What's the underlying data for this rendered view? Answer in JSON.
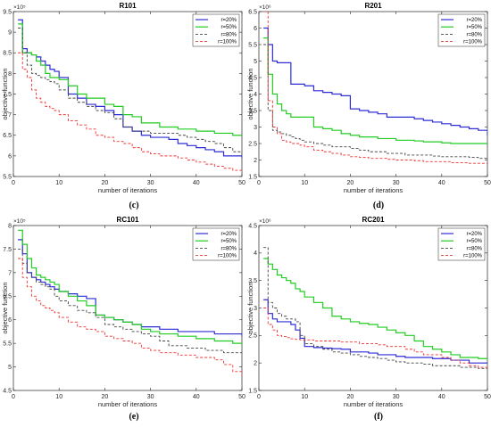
{
  "colors": {
    "r20": "#2d2dd6",
    "r50": "#22cc22",
    "r80": "#444444",
    "r100": "#ee3333",
    "axis": "#262626",
    "grid": "#000000"
  },
  "chart_data": [
    {
      "type": "line",
      "caption": "(c)",
      "title": "R101",
      "xlabel": "number of iterations",
      "ylabel": "objective function",
      "exponent": "×10⁵",
      "xlim": [
        0,
        50
      ],
      "ylim": [
        5.5,
        9.5
      ],
      "xticks": [
        "0",
        "10",
        "20",
        "30",
        "40",
        "50"
      ],
      "yticks": [
        "5.5",
        "6",
        "6.5",
        "7",
        "7.5",
        "8",
        "8.5",
        "9",
        "9.5"
      ],
      "legend_position": "top-right",
      "x": [
        1,
        2,
        3,
        4,
        5,
        6,
        7,
        8,
        9,
        10,
        12,
        14,
        16,
        18,
        20,
        22,
        24,
        26,
        28,
        30,
        32,
        34,
        36,
        38,
        40,
        42,
        44,
        46,
        48,
        50
      ],
      "series": [
        {
          "name": "r=20%",
          "values": [
            9.3,
            8.6,
            8.5,
            8.45,
            8.4,
            8.3,
            8.2,
            8.1,
            8.05,
            7.9,
            7.5,
            7.4,
            7.25,
            7.2,
            7.1,
            7.0,
            6.7,
            6.6,
            6.5,
            6.45,
            6.45,
            6.4,
            6.3,
            6.25,
            6.2,
            6.15,
            6.1,
            6.0,
            6.0,
            5.95
          ]
        },
        {
          "name": "r=50%",
          "values": [
            9.2,
            8.5,
            8.5,
            8.45,
            8.3,
            8.2,
            8.0,
            7.9,
            7.9,
            7.85,
            7.7,
            7.5,
            7.4,
            7.4,
            7.25,
            7.2,
            7.0,
            6.95,
            6.8,
            6.8,
            6.7,
            6.7,
            6.65,
            6.65,
            6.6,
            6.6,
            6.55,
            6.55,
            6.5,
            6.5
          ]
        },
        {
          "name": "r=80%",
          "values": [
            9.1,
            8.5,
            8.2,
            8.0,
            7.95,
            7.9,
            7.85,
            7.8,
            7.75,
            7.6,
            7.4,
            7.3,
            7.2,
            7.1,
            7.05,
            6.9,
            6.7,
            6.6,
            6.6,
            6.55,
            6.55,
            6.55,
            6.5,
            6.45,
            6.4,
            6.35,
            6.3,
            6.2,
            6.1,
            6.0
          ]
        },
        {
          "name": "r=100%",
          "values": [
            8.5,
            8.1,
            7.9,
            7.6,
            7.4,
            7.3,
            7.2,
            7.15,
            7.1,
            7.0,
            6.85,
            6.75,
            6.65,
            6.5,
            6.45,
            6.35,
            6.3,
            6.2,
            6.1,
            6.05,
            6.0,
            6.0,
            5.95,
            5.9,
            5.85,
            5.8,
            5.75,
            5.7,
            5.65,
            5.6
          ]
        }
      ]
    },
    {
      "type": "line",
      "caption": "(d)",
      "title": "R201",
      "xlabel": "number of iterations",
      "ylabel": "objective function",
      "exponent": "×10⁶",
      "xlim": [
        0,
        50
      ],
      "ylim": [
        1.5,
        6.5
      ],
      "xticks": [
        "0",
        "10",
        "20",
        "30",
        "40",
        "50"
      ],
      "yticks": [
        "1.5",
        "2",
        "2.5",
        "3",
        "3.5",
        "4",
        "4.5",
        "5",
        "5.5",
        "6",
        "6.5"
      ],
      "legend_position": "top-right",
      "x": [
        1,
        2,
        3,
        4,
        5,
        6,
        7,
        8,
        9,
        10,
        12,
        14,
        16,
        18,
        20,
        22,
        24,
        26,
        28,
        30,
        32,
        34,
        36,
        38,
        40,
        42,
        44,
        46,
        48,
        50
      ],
      "series": [
        {
          "name": "r=20%",
          "values": [
            6.0,
            5.5,
            5.0,
            4.95,
            4.95,
            4.95,
            4.3,
            4.3,
            4.3,
            4.25,
            4.1,
            4.05,
            4.0,
            3.95,
            3.55,
            3.5,
            3.45,
            3.4,
            3.3,
            3.3,
            3.3,
            3.25,
            3.2,
            3.15,
            3.1,
            3.05,
            3.0,
            2.95,
            2.9,
            2.75
          ]
        },
        {
          "name": "r=50%",
          "values": [
            5.7,
            4.6,
            4.0,
            3.7,
            3.5,
            3.4,
            3.3,
            3.3,
            3.3,
            3.3,
            3.0,
            2.95,
            2.9,
            2.8,
            2.75,
            2.7,
            2.7,
            2.65,
            2.65,
            2.6,
            2.6,
            2.58,
            2.55,
            2.55,
            2.52,
            2.5,
            2.5,
            2.5,
            2.5,
            2.5
          ]
        },
        {
          "name": "r=80%",
          "values": [
            5.5,
            3.5,
            2.9,
            2.85,
            2.8,
            2.75,
            2.7,
            2.65,
            2.6,
            2.55,
            2.5,
            2.45,
            2.4,
            2.4,
            2.35,
            2.3,
            2.25,
            2.25,
            2.2,
            2.2,
            2.15,
            2.15,
            2.15,
            2.12,
            2.1,
            2.1,
            2.1,
            2.08,
            2.05,
            2.05
          ]
        },
        {
          "name": "r=100%",
          "values": [
            6.5,
            3.8,
            3.0,
            2.8,
            2.6,
            2.55,
            2.5,
            2.5,
            2.45,
            2.4,
            2.3,
            2.25,
            2.2,
            2.15,
            2.1,
            2.08,
            2.05,
            2.05,
            2.02,
            2.0,
            2.0,
            1.98,
            1.95,
            1.95,
            1.95,
            1.92,
            1.92,
            1.9,
            1.9,
            1.9
          ]
        }
      ]
    },
    {
      "type": "line",
      "caption": "(e)",
      "title": "RC101",
      "xlabel": "number of iterations",
      "ylabel": "objective function",
      "exponent": "×10⁵",
      "xlim": [
        0,
        50
      ],
      "ylim": [
        4.5,
        8
      ],
      "xticks": [
        "0",
        "10",
        "20",
        "30",
        "40",
        "50"
      ],
      "yticks": [
        "4.5",
        "5",
        "5.5",
        "6",
        "6.5",
        "7",
        "7.5",
        "8"
      ],
      "legend_position": "top-right",
      "x": [
        1,
        2,
        3,
        4,
        5,
        6,
        7,
        8,
        9,
        10,
        12,
        14,
        16,
        18,
        20,
        22,
        24,
        26,
        28,
        30,
        32,
        34,
        36,
        38,
        40,
        42,
        44,
        46,
        48,
        50
      ],
      "series": [
        {
          "name": "r=20%",
          "values": [
            7.7,
            7.4,
            7.0,
            6.9,
            6.85,
            6.8,
            6.75,
            6.7,
            6.65,
            6.6,
            6.55,
            6.5,
            6.45,
            6.1,
            6.05,
            6.0,
            5.95,
            5.9,
            5.85,
            5.85,
            5.8,
            5.8,
            5.75,
            5.75,
            5.75,
            5.75,
            5.7,
            5.7,
            5.7,
            5.65
          ]
        },
        {
          "name": "r=50%",
          "values": [
            7.9,
            7.6,
            7.3,
            7.1,
            6.95,
            6.9,
            6.85,
            6.8,
            6.75,
            6.6,
            6.5,
            6.4,
            6.3,
            6.1,
            6.05,
            6.0,
            5.95,
            5.9,
            5.8,
            5.75,
            5.7,
            5.7,
            5.65,
            5.65,
            5.6,
            5.6,
            5.55,
            5.55,
            5.5,
            5.45
          ]
        },
        {
          "name": "r=80%",
          "values": [
            7.5,
            7.2,
            7.0,
            6.9,
            6.8,
            6.75,
            6.7,
            6.65,
            6.5,
            6.4,
            6.3,
            6.2,
            6.15,
            6.05,
            5.9,
            5.85,
            5.8,
            5.75,
            5.7,
            5.65,
            5.55,
            5.45,
            5.45,
            5.4,
            5.4,
            5.35,
            5.35,
            5.3,
            5.3,
            5.3
          ]
        },
        {
          "name": "r=100%",
          "values": [
            7.3,
            6.9,
            6.7,
            6.5,
            6.4,
            6.3,
            6.25,
            6.2,
            6.15,
            6.05,
            5.95,
            5.85,
            5.8,
            5.75,
            5.65,
            5.6,
            5.55,
            5.5,
            5.4,
            5.35,
            5.3,
            5.3,
            5.25,
            5.25,
            5.2,
            5.2,
            5.15,
            5.05,
            4.9,
            4.75
          ]
        }
      ]
    },
    {
      "type": "line",
      "caption": "(f)",
      "title": "RC201",
      "xlabel": "number of iterations",
      "ylabel": "objective function",
      "exponent": "×10⁶",
      "xlim": [
        0,
        50
      ],
      "ylim": [
        1.5,
        4.5
      ],
      "xticks": [
        "0",
        "10",
        "20",
        "30",
        "40",
        "50"
      ],
      "yticks": [
        "1.5",
        "2",
        "2.5",
        "3",
        "3.5",
        "4",
        "4.5"
      ],
      "legend_position": "top-right",
      "x": [
        1,
        2,
        3,
        4,
        5,
        6,
        7,
        8,
        9,
        10,
        12,
        14,
        16,
        18,
        20,
        22,
        24,
        26,
        28,
        30,
        32,
        34,
        36,
        38,
        40,
        42,
        44,
        46,
        48,
        50
      ],
      "series": [
        {
          "name": "r=20%",
          "values": [
            3.15,
            2.9,
            2.8,
            2.75,
            2.75,
            2.75,
            2.7,
            2.6,
            2.45,
            2.3,
            2.28,
            2.27,
            2.26,
            2.25,
            2.2,
            2.2,
            2.18,
            2.15,
            2.15,
            2.12,
            2.1,
            2.1,
            2.1,
            2.08,
            2.08,
            2.05,
            2.05,
            2.0,
            2.0,
            2.0
          ]
        },
        {
          "name": "r=50%",
          "values": [
            3.9,
            3.8,
            3.7,
            3.6,
            3.55,
            3.5,
            3.45,
            3.35,
            3.3,
            3.2,
            3.1,
            3.0,
            2.85,
            2.8,
            2.75,
            2.72,
            2.7,
            2.65,
            2.6,
            2.55,
            2.5,
            2.4,
            2.3,
            2.25,
            2.2,
            2.15,
            2.1,
            2.1,
            2.08,
            2.05
          ]
        },
        {
          "name": "r=80%",
          "values": [
            4.1,
            3.1,
            3.0,
            2.9,
            2.85,
            2.8,
            2.8,
            2.75,
            2.5,
            2.35,
            2.3,
            2.25,
            2.2,
            2.18,
            2.15,
            2.12,
            2.1,
            2.08,
            2.05,
            2.02,
            2.0,
            2.0,
            1.98,
            1.95,
            1.95,
            1.95,
            1.92,
            1.92,
            1.9,
            1.9
          ]
        },
        {
          "name": "r=100%",
          "values": [
            3.0,
            2.7,
            2.6,
            2.5,
            2.48,
            2.46,
            2.44,
            2.43,
            2.42,
            2.42,
            2.4,
            2.4,
            2.4,
            2.38,
            2.38,
            2.35,
            2.35,
            2.33,
            2.3,
            2.3,
            2.25,
            2.2,
            2.15,
            2.15,
            2.1,
            2.05,
            2.0,
            1.95,
            1.92,
            1.9
          ]
        }
      ]
    }
  ]
}
